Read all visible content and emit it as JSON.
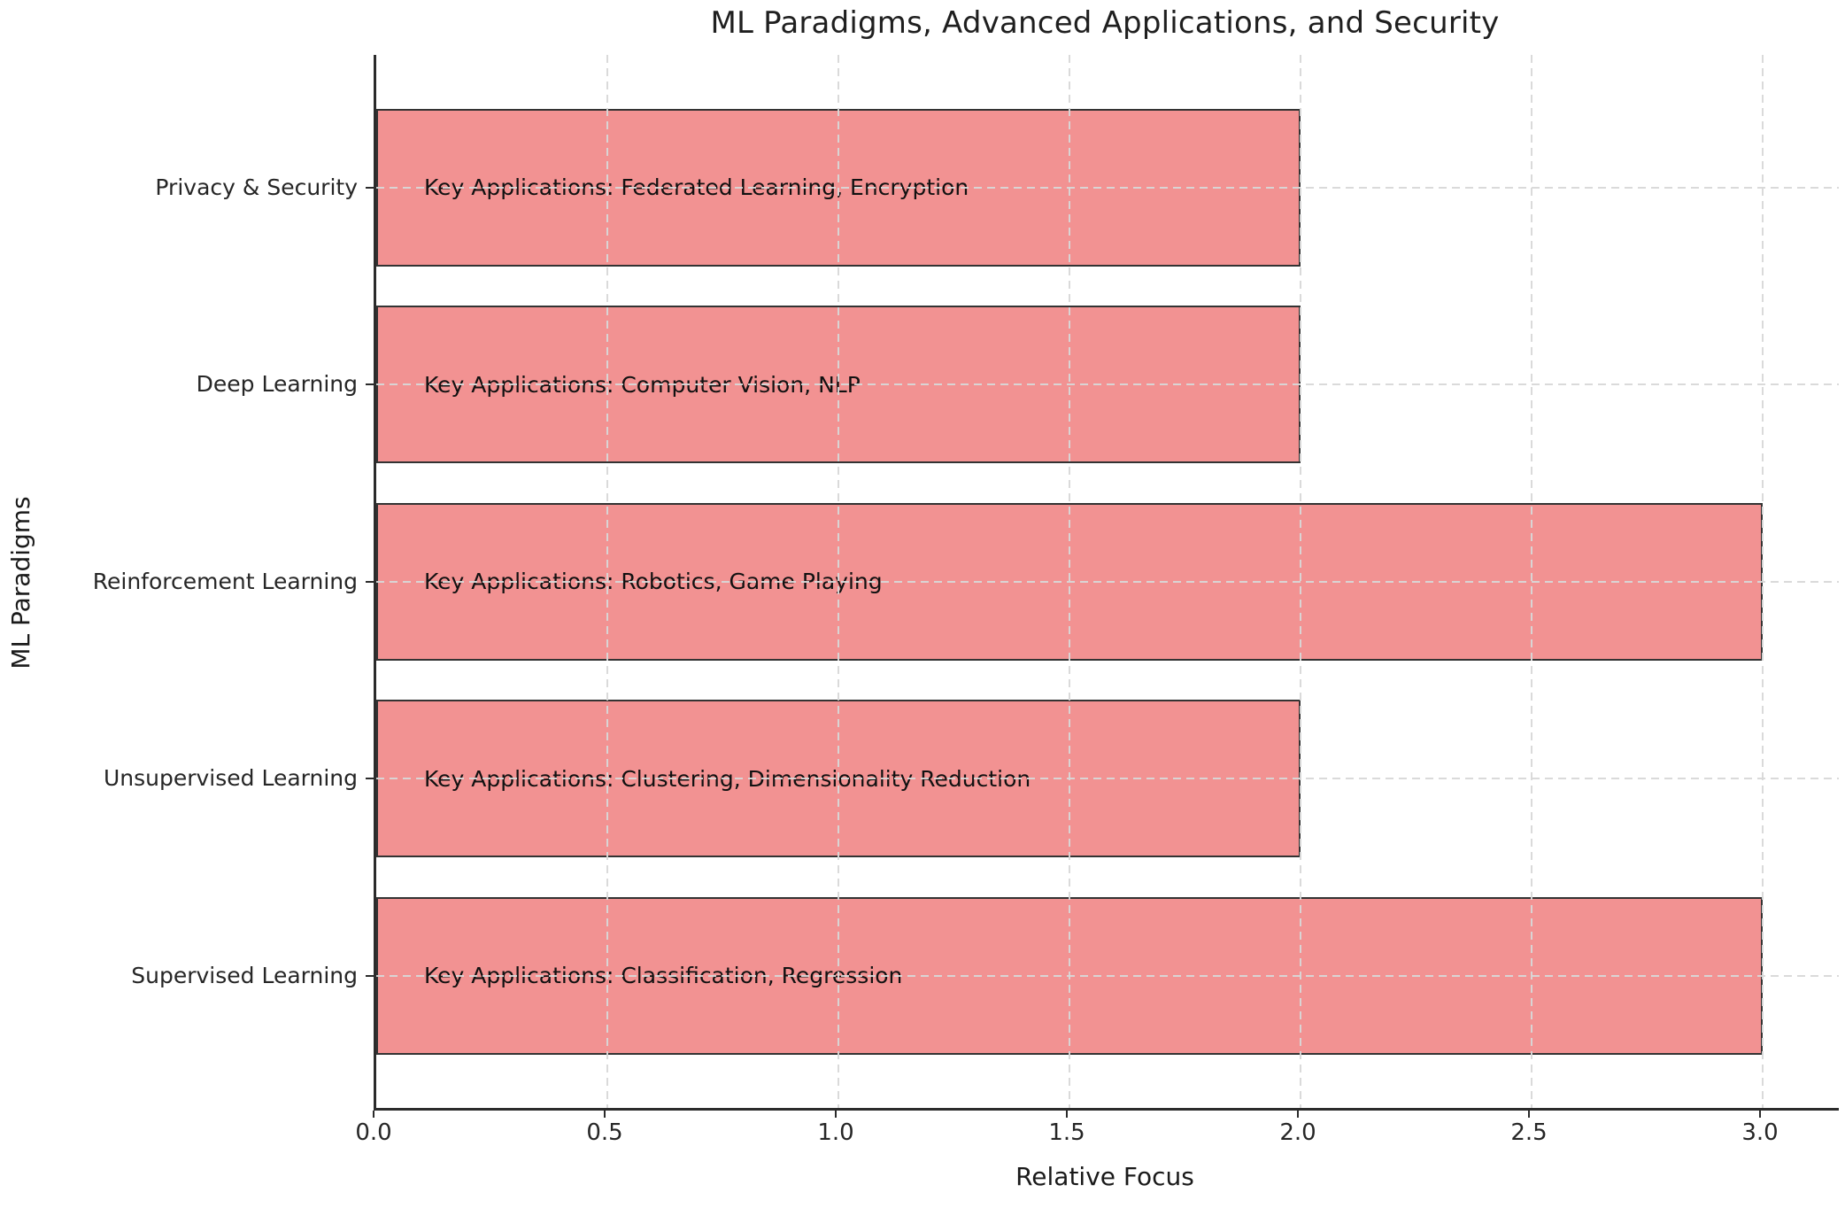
{
  "chart_data": {
    "type": "bar",
    "orientation": "horizontal",
    "title": "ML Paradigms, Advanced Applications, and Security",
    "xlabel": "Relative Focus",
    "ylabel": "ML Paradigms",
    "row_order": "top-to-bottom",
    "rows": [
      {
        "category": "Privacy & Security",
        "value": 2.0,
        "annotation": "Key Applications: Federated Learning, Encryption"
      },
      {
        "category": "Deep Learning",
        "value": 2.0,
        "annotation": "Key Applications: Computer Vision, NLP"
      },
      {
        "category": "Reinforcement Learning",
        "value": 3.0,
        "annotation": "Key Applications: Robotics, Game Playing"
      },
      {
        "category": "Unsupervised Learning",
        "value": 2.0,
        "annotation": "Key Applications: Clustering, Dimensionality Reduction"
      },
      {
        "category": "Supervised Learning",
        "value": 3.0,
        "annotation": "Key Applications: Classification, Regression"
      }
    ],
    "x_tick_labels": [
      "0.0",
      "0.5",
      "1.0",
      "1.5",
      "2.0",
      "2.5",
      "3.0"
    ],
    "xlim": [
      0.0,
      3.16
    ],
    "grid": {
      "style": "dashed",
      "axes": "both",
      "above_bars": true
    },
    "legend": null,
    "colors": {
      "bar_fill": "#f29292",
      "bar_edge": "#333333",
      "grid": "#d8d8d8",
      "axis": "#2b2b2b",
      "text": "#1a1a1a"
    }
  }
}
